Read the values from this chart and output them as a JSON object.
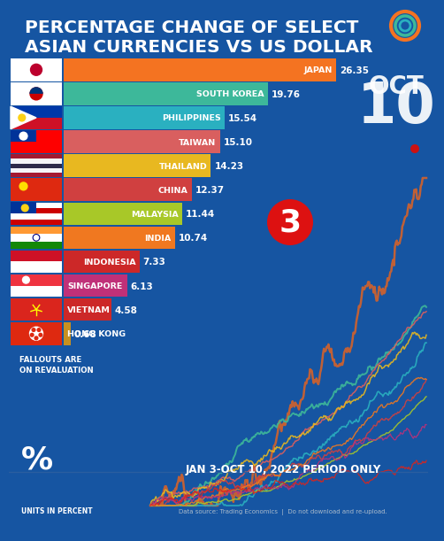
{
  "title_line1": "PERCENTAGE CHANGE OF SELECT",
  "title_line2": "ASIAN CURRENCIES VS US DOLLAR",
  "background_color": "#1655a2",
  "bar_data": [
    {
      "country": "JAPAN",
      "value": 26.35,
      "color": "#f47321",
      "flag_primary": "#bc002d",
      "flag_secondary": "#ffffff"
    },
    {
      "country": "SOUTH KOREA",
      "value": 19.76,
      "color": "#3db89a",
      "flag_primary": "#003478",
      "flag_secondary": "#ce1126"
    },
    {
      "country": "PHILIPPINES",
      "value": 15.54,
      "color": "#2ab0c0",
      "flag_primary": "#0038a8",
      "flag_secondary": "#ce1126"
    },
    {
      "country": "TAIWAN",
      "value": 15.1,
      "color": "#d95f5f",
      "flag_primary": "#fe0000",
      "flag_secondary": "#003399"
    },
    {
      "country": "THAILAND",
      "value": 14.23,
      "color": "#e8b820",
      "flag_primary": "#a51931",
      "flag_secondary": "#2d2a4a"
    },
    {
      "country": "CHINA",
      "value": 12.37,
      "color": "#d04040",
      "flag_primary": "#de2910",
      "flag_secondary": "#ffde00"
    },
    {
      "country": "MALAYSIA",
      "value": 11.44,
      "color": "#a8c828",
      "flag_primary": "#cc0001",
      "flag_secondary": "#003399"
    },
    {
      "country": "INDIA",
      "value": 10.74,
      "color": "#f07820",
      "flag_primary": "#ff9933",
      "flag_secondary": "#138808"
    },
    {
      "country": "INDONESIA",
      "value": 7.33,
      "color": "#cc2828",
      "flag_primary": "#ce1126",
      "flag_secondary": "#ffffff"
    },
    {
      "country": "SINGAPORE",
      "value": 6.13,
      "color": "#c03078",
      "flag_primary": "#ef3340",
      "flag_secondary": "#ffffff"
    },
    {
      "country": "VIETNAM",
      "value": 4.58,
      "color": "#cc2828",
      "flag_primary": "#da251d",
      "flag_secondary": "#ffff00"
    },
    {
      "country": "HONG KONG",
      "value": 0.68,
      "color": "#c89020",
      "flag_primary": "#de2910",
      "flag_secondary": "#ffffff"
    }
  ],
  "line_colors": [
    "#d4622a",
    "#3db89a",
    "#2ab0c0",
    "#d95f5f",
    "#e8b820",
    "#d04040",
    "#a8c828",
    "#f07820",
    "#c03078",
    "#da251d"
  ],
  "oct_text": "OCT",
  "ten_text": "10",
  "rank_text": "3",
  "period_text": "JAN 3-OCT 10, 2022 PERIOD ONLY",
  "source_text": "Data source: Trading Economics  |  Do not download and re-upload.",
  "fallout_text": "FALLOUTS ARE\nON REVALUATION",
  "units_symbol": "%",
  "units_text": "UNITS IN PERCENT",
  "max_value": 26.35,
  "circle_colors": [
    "#f47321",
    "#3db89a",
    "#2ab0c0"
  ]
}
